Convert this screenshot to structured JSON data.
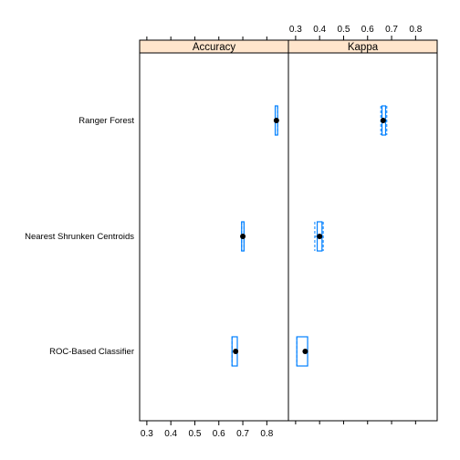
{
  "chart_data": {
    "type": "bwplot",
    "categories": [
      "Ranger Forest",
      "Nearest Shrunken Centroids",
      "ROC-Based Classifier"
    ],
    "panels": [
      {
        "name": "Accuracy",
        "xlim": [
          0.27,
          0.89
        ],
        "ticks": [
          0.3,
          0.4,
          0.5,
          0.6,
          0.7,
          0.8
        ],
        "tick_labels": [
          "0.3",
          "0.4",
          "0.5",
          "0.6",
          "0.7",
          "0.8"
        ],
        "data": [
          {
            "category": "Ranger Forest",
            "min": 0.835,
            "q1": 0.835,
            "median": 0.84,
            "q3": 0.845,
            "max": 0.845
          },
          {
            "category": "Nearest Shrunken Centroids",
            "min": 0.695,
            "q1": 0.695,
            "median": 0.7,
            "q3": 0.705,
            "max": 0.705
          },
          {
            "category": "ROC-Based Classifier",
            "min": 0.655,
            "q1": 0.655,
            "median": 0.67,
            "q3": 0.677,
            "max": 0.677
          }
        ]
      },
      {
        "name": "Kappa",
        "xlim": [
          0.27,
          0.89
        ],
        "ticks": [
          0.3,
          0.4,
          0.5,
          0.6,
          0.7,
          0.8
        ],
        "tick_labels": [
          "0.3",
          "0.4",
          "0.5",
          "0.6",
          "0.7",
          "0.8"
        ],
        "data": [
          {
            "category": "Ranger Forest",
            "min": 0.655,
            "q1": 0.66,
            "median": 0.665,
            "q3": 0.675,
            "max": 0.68
          },
          {
            "category": "Nearest Shrunken Centroids",
            "min": 0.38,
            "q1": 0.39,
            "median": 0.4,
            "q3": 0.41,
            "max": 0.415
          },
          {
            "category": "ROC-Based Classifier",
            "min": 0.305,
            "q1": 0.305,
            "median": 0.34,
            "q3": 0.35,
            "max": 0.35
          }
        ]
      }
    ],
    "colors": {
      "box": "#0080ff",
      "median": "#000000",
      "strip": "#ffe5cc",
      "frame": "#000000"
    }
  }
}
